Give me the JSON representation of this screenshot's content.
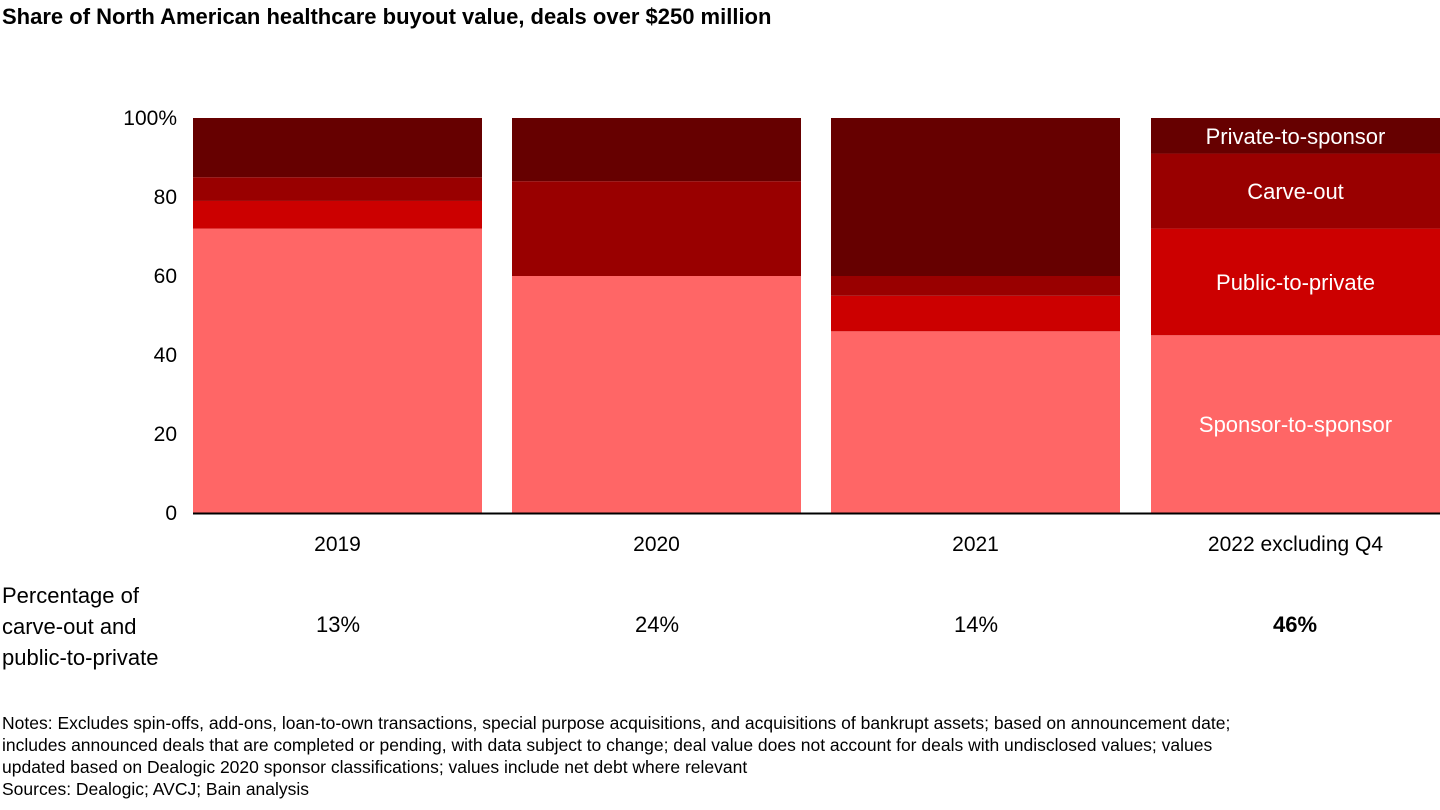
{
  "title": "Share of North American healthcare buyout value, deals over $250 million",
  "chart_data": {
    "type": "bar",
    "stacked": true,
    "normalized": true,
    "title": "Share of North American healthcare buyout value, deals over $250 million",
    "categories": [
      "2019",
      "2020",
      "2021",
      "2022 excluding Q4"
    ],
    "series": [
      {
        "name": "Sponsor-to-sponsor",
        "color": "#ff6666",
        "values": [
          72,
          60,
          46,
          45
        ]
      },
      {
        "name": "Public-to-private",
        "color": "#cc0000",
        "values": [
          7,
          0,
          9,
          27
        ]
      },
      {
        "name": "Carve-out",
        "color": "#990000",
        "values": [
          6,
          24,
          5,
          19
        ]
      },
      {
        "name": "Private-to-sponsor",
        "color": "#660000",
        "values": [
          15,
          16,
          40,
          9
        ]
      }
    ],
    "y_ticks": [
      "0",
      "20",
      "40",
      "60",
      "80",
      "100%"
    ],
    "ylim": [
      0,
      100
    ],
    "xlabel": "",
    "ylabel": "",
    "legend": "inline labels on last bar"
  },
  "summary_row": {
    "label_lines": [
      "Percentage of",
      "carve-out and",
      "public-to-private"
    ],
    "values": [
      "13%",
      "24%",
      "14%",
      "46%"
    ],
    "highlight_index": 3
  },
  "notes": {
    "lines": [
      "Notes: Excludes spin-offs, add-ons, loan-to-own transactions, special purpose acquisitions, and acquisitions of bankrupt assets; based on announcement date;",
      "includes announced deals that are completed or pending, with data subject to change; deal value does not account for deals with undisclosed values; values",
      "updated based on Dealogic 2020 sponsor classifications; values include net debt where relevant",
      "Sources: Dealogic; AVCJ; Bain analysis"
    ]
  }
}
